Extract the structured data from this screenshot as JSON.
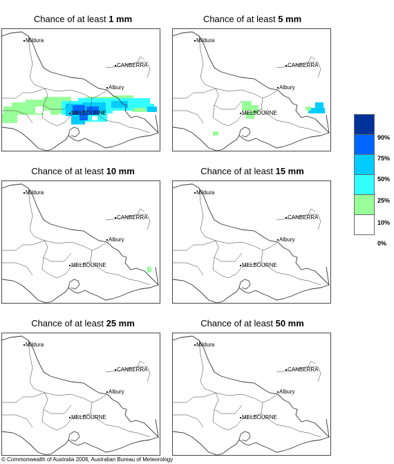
{
  "panels": [
    {
      "prefix": "Chance of at least ",
      "amount": "1 mm"
    },
    {
      "prefix": "Chance of at least ",
      "amount": "5 mm"
    },
    {
      "prefix": "Chance of at least ",
      "amount": "10 mm"
    },
    {
      "prefix": "Chance of at least ",
      "amount": "15 mm"
    },
    {
      "prefix": "Chance of at least ",
      "amount": "25 mm"
    },
    {
      "prefix": "Chance of at least ",
      "amount": "50 mm"
    }
  ],
  "places": {
    "mildura": "Mildura",
    "canberra": "CANBERRA",
    "albury": "Albury",
    "melbourne": "MELBOURNE"
  },
  "legend": {
    "labels": [
      "90%",
      "75%",
      "50%",
      "25%",
      "10%",
      "0%"
    ],
    "colors": [
      "#003399",
      "#0066ff",
      "#00ccff",
      "#33ffff",
      "#99ff99",
      "#ffffff"
    ]
  },
  "copyright": "© Commonwealth of Australia 2006, Australian Bureau of Meteorology"
}
